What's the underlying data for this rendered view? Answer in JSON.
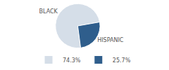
{
  "chart_data": {
    "type": "pie",
    "categories": [
      "BLACK",
      "HISPANIC"
    ],
    "values": [
      74.3,
      25.7
    ],
    "value_labels": [
      "74.3%",
      "25.7%"
    ],
    "colors": [
      "#d5dee8",
      "#2f5e8c"
    ],
    "legend": "bottom"
  }
}
